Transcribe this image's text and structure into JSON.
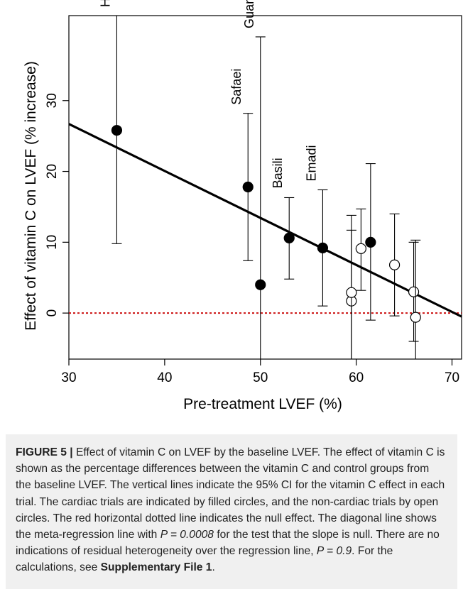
{
  "chart_data": {
    "type": "scatter",
    "title": "",
    "xlabel": "Pre-treatment LVEF (%)",
    "ylabel": "Effect of vitamin C on LVEF (% increase)",
    "xlim": [
      30,
      71
    ],
    "ylim": [
      -6.5,
      42
    ],
    "x_ticks": [
      30,
      40,
      50,
      60,
      70
    ],
    "y_ticks": [
      0,
      10,
      20,
      30
    ],
    "grid": false,
    "legend": "none",
    "colors": {
      "points": "#000000",
      "null_line": "#cc1111",
      "regression": "#000000"
    },
    "series": [
      {
        "name": "Cardiac trials",
        "marker": "filled-circle",
        "points": [
          {
            "label": "Ho",
            "x": 35.0,
            "y": 25.8,
            "ci_low": 9.8,
            "ci_high": 42
          },
          {
            "label": "Safaei",
            "x": 48.7,
            "y": 17.8,
            "ci_low": 7.4,
            "ci_high": 28.2
          },
          {
            "label": "Guan",
            "x": 50.0,
            "y": 4.0,
            "ci_low": -6.5,
            "ci_high": 39.0
          },
          {
            "label": "Basili",
            "x": 53.0,
            "y": 10.6,
            "ci_low": 4.8,
            "ci_high": 16.3
          },
          {
            "label": "Emadi",
            "x": 56.5,
            "y": 9.2,
            "ci_low": 1.0,
            "ci_high": 17.4
          },
          {
            "label": "",
            "x": 61.5,
            "y": 10.0,
            "ci_low": -1.0,
            "ci_high": 21.1
          }
        ]
      },
      {
        "name": "Non-cardiac trials",
        "marker": "open-circle",
        "points": [
          {
            "label": "",
            "x": 59.5,
            "y": 1.7,
            "ci_low": -6.5,
            "ci_high": 11.7
          },
          {
            "label": "",
            "x": 59.5,
            "y": 2.9,
            "ci_low": -6.5,
            "ci_high": 13.8
          },
          {
            "label": "",
            "x": 60.5,
            "y": 9.1,
            "ci_low": 3.2,
            "ci_high": 14.7
          },
          {
            "label": "",
            "x": 64.0,
            "y": 6.8,
            "ci_low": -0.4,
            "ci_high": 14.0
          },
          {
            "label": "",
            "x": 66.0,
            "y": 3.0,
            "ci_low": -4.0,
            "ci_high": 10.0
          },
          {
            "label": "",
            "x": 66.2,
            "y": -0.6,
            "ci_low": -6.5,
            "ci_high": 10.3
          }
        ]
      }
    ],
    "regression_line": {
      "x": [
        30,
        71
      ],
      "y": [
        26.7,
        -0.5
      ]
    },
    "null_line": {
      "y": 0
    }
  },
  "caption": {
    "label": "FIGURE 5 |",
    "text": " Effect of vitamin C on LVEF by the baseline LVEF. The effect of vitamin C is shown as the percentage differences between the vitamin C and control groups from the baseline LVEF. The vertical lines indicate the 95% CI for the vitamin C effect in each trial. The cardiac trials are indicated by filled circles, and the non-cardiac trials by open circles. The red horizontal dotted line indicates the null effect. The diagonal line shows the meta-regression line with ",
    "p1": "P = 0.0008",
    "text2": " for the test that the slope is null. There are no indications of residual heterogeneity over the regression line, ",
    "p2": "P = 0.9",
    "text3": ". For the calculations, see ",
    "file": "Supplementary File 1",
    "end": "."
  }
}
